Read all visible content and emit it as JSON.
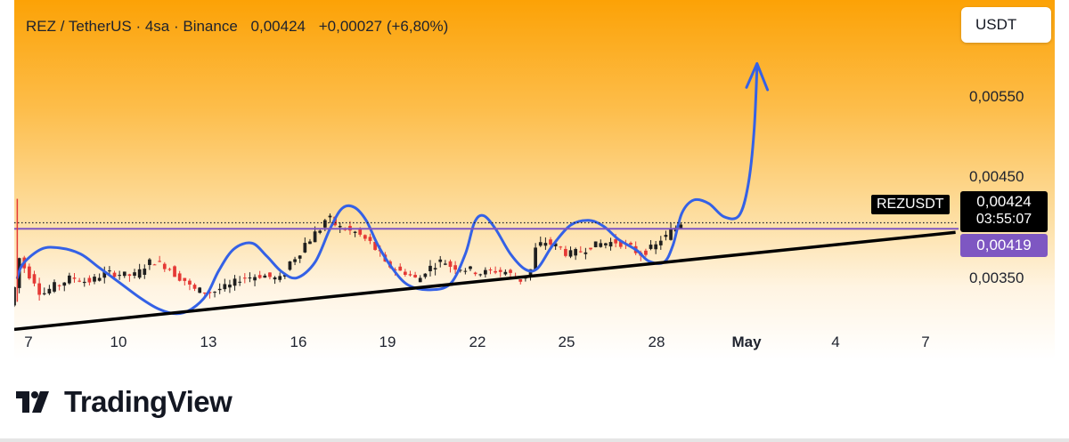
{
  "header": {
    "title": "REZ / TetherUS · 4sa · Binance",
    "last_price": "0,00424",
    "change": "+0,00027 (+6,80%)"
  },
  "currency_button": "USDT",
  "brand": {
    "name": "TradingView",
    "logo_icon": "tradingview-logo-icon"
  },
  "price_labels": {
    "symbol": "REZUSDT",
    "price": "0,00424",
    "countdown": "03:55:07",
    "ma": "0,00419"
  },
  "colors": {
    "up": "#1f1f1f",
    "down": "#e53935",
    "wave": "#3461e6",
    "ma_line": "#7e57c2",
    "trendline": "#000000",
    "background_top": "#fca206"
  },
  "chart_data": {
    "type": "candlestick",
    "title": "REZ / TetherUS · 4sa · Binance",
    "y_ticks": [
      {
        "value": 0.0055,
        "label": "0,00550"
      },
      {
        "value": 0.0045,
        "label": "0,00450"
      },
      {
        "value": 0.0035,
        "label": "0,00350"
      }
    ],
    "ylim": [
      0.0031,
      0.0061
    ],
    "x_ticks": [
      {
        "day": 7,
        "label": "7"
      },
      {
        "day": 10,
        "label": "10"
      },
      {
        "day": 13,
        "label": "13"
      },
      {
        "day": 16,
        "label": "16"
      },
      {
        "day": 19,
        "label": "19"
      },
      {
        "day": 22,
        "label": "22"
      },
      {
        "day": 25,
        "label": "25"
      },
      {
        "day": 28,
        "label": "28"
      },
      {
        "day": 31,
        "label": "May",
        "bold": true
      },
      {
        "day": 34,
        "label": "4"
      },
      {
        "day": 37,
        "label": "7"
      }
    ],
    "xlim": [
      6.5,
      37.9
    ],
    "candle_width_days": 0.11,
    "anchors": [
      [
        6.5,
        0.00355
      ],
      [
        6.7,
        0.00395
      ],
      [
        7.1,
        0.0038
      ],
      [
        7.5,
        0.00365
      ],
      [
        8.0,
        0.00372
      ],
      [
        8.5,
        0.00378
      ],
      [
        9.0,
        0.00375
      ],
      [
        9.7,
        0.00382
      ],
      [
        10.5,
        0.0038
      ],
      [
        11.2,
        0.00392
      ],
      [
        11.6,
        0.00388
      ],
      [
        12.1,
        0.00378
      ],
      [
        12.6,
        0.00368
      ],
      [
        13.1,
        0.00366
      ],
      [
        13.6,
        0.0037
      ],
      [
        14.2,
        0.00378
      ],
      [
        14.8,
        0.0038
      ],
      [
        15.4,
        0.00377
      ],
      [
        15.9,
        0.00395
      ],
      [
        16.4,
        0.0041
      ],
      [
        16.7,
        0.00418
      ],
      [
        17.0,
        0.00428
      ],
      [
        17.4,
        0.0042
      ],
      [
        17.9,
        0.00416
      ],
      [
        18.3,
        0.0041
      ],
      [
        18.6,
        0.00402
      ],
      [
        19.0,
        0.00388
      ],
      [
        19.5,
        0.00383
      ],
      [
        20.0,
        0.00377
      ],
      [
        20.4,
        0.00387
      ],
      [
        20.8,
        0.00392
      ],
      [
        21.2,
        0.00387
      ],
      [
        21.7,
        0.00385
      ],
      [
        22.1,
        0.00382
      ],
      [
        22.5,
        0.00384
      ],
      [
        22.9,
        0.00383
      ],
      [
        23.4,
        0.00376
      ],
      [
        23.7,
        0.00382
      ],
      [
        23.9,
        0.00402
      ],
      [
        24.2,
        0.00408
      ],
      [
        24.6,
        0.00405
      ],
      [
        25.0,
        0.00398
      ],
      [
        25.4,
        0.004
      ],
      [
        25.8,
        0.00405
      ],
      [
        26.2,
        0.00407
      ],
      [
        26.6,
        0.00408
      ],
      [
        27.0,
        0.00404
      ],
      [
        27.4,
        0.00398
      ],
      [
        27.8,
        0.00403
      ],
      [
        28.2,
        0.00412
      ],
      [
        28.5,
        0.00418
      ],
      [
        28.7,
        0.00424
      ]
    ],
    "annotations": [
      {
        "type": "wave-path",
        "color": "#3461e6",
        "points": [
          [
            6.6,
            0.00378
          ],
          [
            6.8,
            0.0039
          ],
          [
            7.4,
            0.00402
          ],
          [
            8.0,
            0.00403
          ],
          [
            8.7,
            0.00398
          ],
          [
            9.3,
            0.00387
          ],
          [
            10.0,
            0.00374
          ],
          [
            10.7,
            0.00361
          ],
          [
            11.3,
            0.00352
          ],
          [
            11.9,
            0.00348
          ],
          [
            12.4,
            0.00352
          ],
          [
            12.9,
            0.00364
          ],
          [
            13.3,
            0.00384
          ],
          [
            13.8,
            0.00402
          ],
          [
            14.4,
            0.00407
          ],
          [
            14.9,
            0.00396
          ],
          [
            15.4,
            0.00383
          ],
          [
            15.9,
            0.00378
          ],
          [
            16.5,
            0.00391
          ],
          [
            17.0,
            0.00419
          ],
          [
            17.4,
            0.00436
          ],
          [
            17.8,
            0.00437
          ],
          [
            18.2,
            0.00426
          ],
          [
            18.6,
            0.00405
          ],
          [
            19.1,
            0.00385
          ],
          [
            19.6,
            0.00372
          ],
          [
            20.3,
            0.00368
          ],
          [
            21.0,
            0.00373
          ],
          [
            21.5,
            0.00398
          ],
          [
            21.8,
            0.00424
          ],
          [
            22.1,
            0.0043
          ],
          [
            22.5,
            0.00419
          ],
          [
            23.0,
            0.00398
          ],
          [
            23.5,
            0.00385
          ],
          [
            23.9,
            0.00386
          ],
          [
            24.4,
            0.00405
          ],
          [
            25.0,
            0.00422
          ],
          [
            25.6,
            0.00426
          ],
          [
            26.1,
            0.00421
          ],
          [
            26.6,
            0.0041
          ],
          [
            27.2,
            0.00401
          ],
          [
            27.6,
            0.00392
          ],
          [
            28.1,
            0.00391
          ],
          [
            28.4,
            0.00405
          ],
          [
            28.7,
            0.00432
          ],
          [
            29.1,
            0.00443
          ],
          [
            29.6,
            0.0044
          ],
          [
            30.1,
            0.00429
          ],
          [
            30.6,
            0.0043
          ],
          [
            30.9,
            0.00455
          ],
          [
            31.1,
            0.005
          ],
          [
            31.2,
            0.00554
          ]
        ],
        "arrowhead": [
          [
            30.85,
            0.00537
          ],
          [
            31.2,
            0.00557
          ],
          [
            31.55,
            0.00535
          ]
        ]
      },
      {
        "type": "trendline",
        "color": "#000000",
        "from": [
          6.5,
          0.00335
        ],
        "to": [
          37.8,
          0.00416
        ]
      },
      {
        "type": "horizontal-line",
        "style": "dotted",
        "color": "#1e222d",
        "value": 0.00424
      },
      {
        "type": "horizontal-line",
        "style": "solid",
        "color": "#7e57c2",
        "value": 0.00419
      },
      {
        "type": "vertical-spike",
        "day": 6.6,
        "high": 0.00444,
        "low": 0.00358
      }
    ]
  }
}
